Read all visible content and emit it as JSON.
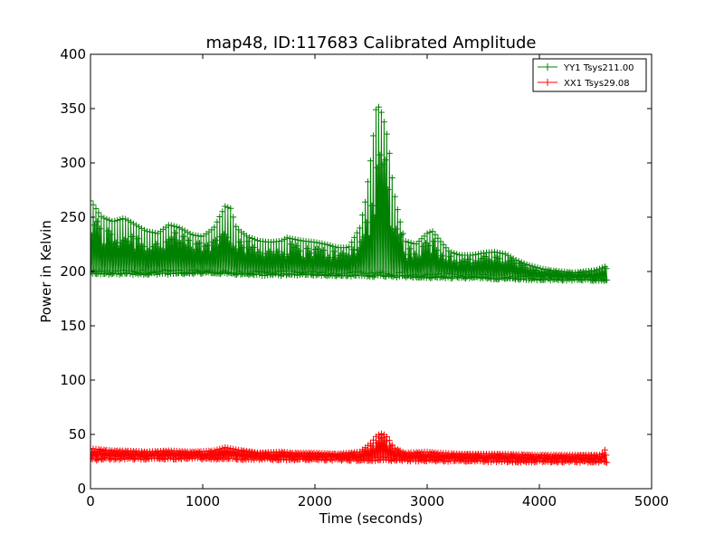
{
  "chart_data": {
    "type": "line",
    "title": "map48, ID:117683 Calibrated Amplitude",
    "xlabel": "Time (seconds)",
    "ylabel": "Power in Kelvin",
    "xlim": [
      0,
      5000
    ],
    "ylim": [
      0,
      400
    ],
    "xticks": [
      0,
      1000,
      2000,
      3000,
      4000,
      5000
    ],
    "yticks": [
      0,
      50,
      100,
      150,
      200,
      250,
      300,
      350,
      400
    ],
    "grid": false,
    "legend_position": "top-right",
    "series": [
      {
        "name": "YY1 Tsys211.00",
        "color": "#008000",
        "marker": "plus",
        "x_end": 4600,
        "baseline_points": [
          [
            0,
            201
          ],
          [
            1000,
            202
          ],
          [
            2000,
            200
          ],
          [
            3000,
            199
          ],
          [
            4000,
            196
          ],
          [
            4600,
            195
          ]
        ],
        "envelope_max": [
          [
            0,
            265
          ],
          [
            100,
            250
          ],
          [
            200,
            246
          ],
          [
            300,
            249
          ],
          [
            400,
            243
          ],
          [
            500,
            237
          ],
          [
            600,
            235
          ],
          [
            700,
            243
          ],
          [
            800,
            240
          ],
          [
            900,
            234
          ],
          [
            1000,
            232
          ],
          [
            1100,
            240
          ],
          [
            1200,
            260
          ],
          [
            1250,
            258
          ],
          [
            1300,
            240
          ],
          [
            1400,
            232
          ],
          [
            1500,
            228
          ],
          [
            1600,
            227
          ],
          [
            1700,
            228
          ],
          [
            1750,
            231
          ],
          [
            1800,
            230
          ],
          [
            1900,
            228
          ],
          [
            2000,
            227
          ],
          [
            2100,
            225
          ],
          [
            2200,
            222
          ],
          [
            2300,
            222
          ],
          [
            2400,
            240
          ],
          [
            2450,
            265
          ],
          [
            2500,
            305
          ],
          [
            2550,
            355
          ],
          [
            2600,
            345
          ],
          [
            2650,
            322
          ],
          [
            2700,
            275
          ],
          [
            2750,
            250
          ],
          [
            2800,
            228
          ],
          [
            2900,
            225
          ],
          [
            3000,
            235
          ],
          [
            3050,
            237
          ],
          [
            3100,
            230
          ],
          [
            3200,
            218
          ],
          [
            3300,
            215
          ],
          [
            3400,
            215
          ],
          [
            3500,
            217
          ],
          [
            3600,
            218
          ],
          [
            3700,
            216
          ],
          [
            3800,
            210
          ],
          [
            3900,
            206
          ],
          [
            4000,
            203
          ],
          [
            4100,
            201
          ],
          [
            4200,
            200
          ],
          [
            4300,
            199
          ],
          [
            4400,
            200
          ],
          [
            4500,
            201
          ],
          [
            4600,
            205
          ]
        ],
        "envelope_min": [
          [
            0,
            197
          ],
          [
            500,
            197
          ],
          [
            1000,
            198
          ],
          [
            1500,
            196
          ],
          [
            2000,
            196
          ],
          [
            2500,
            195
          ],
          [
            3000,
            194
          ],
          [
            3500,
            193
          ],
          [
            4000,
            192
          ],
          [
            4600,
            191
          ]
        ]
      },
      {
        "name": "XX1 Tsys29.08",
        "color": "#ff0000",
        "marker": "plus",
        "x_end": 4600,
        "baseline_points": [
          [
            0,
            31
          ],
          [
            1000,
            31
          ],
          [
            2000,
            30
          ],
          [
            3000,
            29
          ],
          [
            4000,
            28
          ],
          [
            4600,
            28
          ]
        ],
        "envelope_max": [
          [
            0,
            37
          ],
          [
            200,
            35
          ],
          [
            300,
            35
          ],
          [
            500,
            34
          ],
          [
            700,
            35
          ],
          [
            900,
            34
          ],
          [
            1100,
            35
          ],
          [
            1200,
            38
          ],
          [
            1300,
            36
          ],
          [
            1500,
            33
          ],
          [
            1700,
            34
          ],
          [
            1800,
            33
          ],
          [
            2000,
            33
          ],
          [
            2200,
            32
          ],
          [
            2400,
            34
          ],
          [
            2500,
            42
          ],
          [
            2550,
            49
          ],
          [
            2600,
            51
          ],
          [
            2650,
            47
          ],
          [
            2700,
            38
          ],
          [
            2800,
            33
          ],
          [
            3000,
            34
          ],
          [
            3100,
            33
          ],
          [
            3300,
            32
          ],
          [
            3500,
            32
          ],
          [
            3700,
            32
          ],
          [
            4000,
            31
          ],
          [
            4300,
            31
          ],
          [
            4550,
            31
          ],
          [
            4600,
            38
          ]
        ],
        "envelope_min": [
          [
            0,
            26
          ],
          [
            1000,
            27
          ],
          [
            2000,
            26
          ],
          [
            3000,
            25
          ],
          [
            4000,
            24
          ],
          [
            4600,
            24
          ]
        ]
      }
    ]
  }
}
